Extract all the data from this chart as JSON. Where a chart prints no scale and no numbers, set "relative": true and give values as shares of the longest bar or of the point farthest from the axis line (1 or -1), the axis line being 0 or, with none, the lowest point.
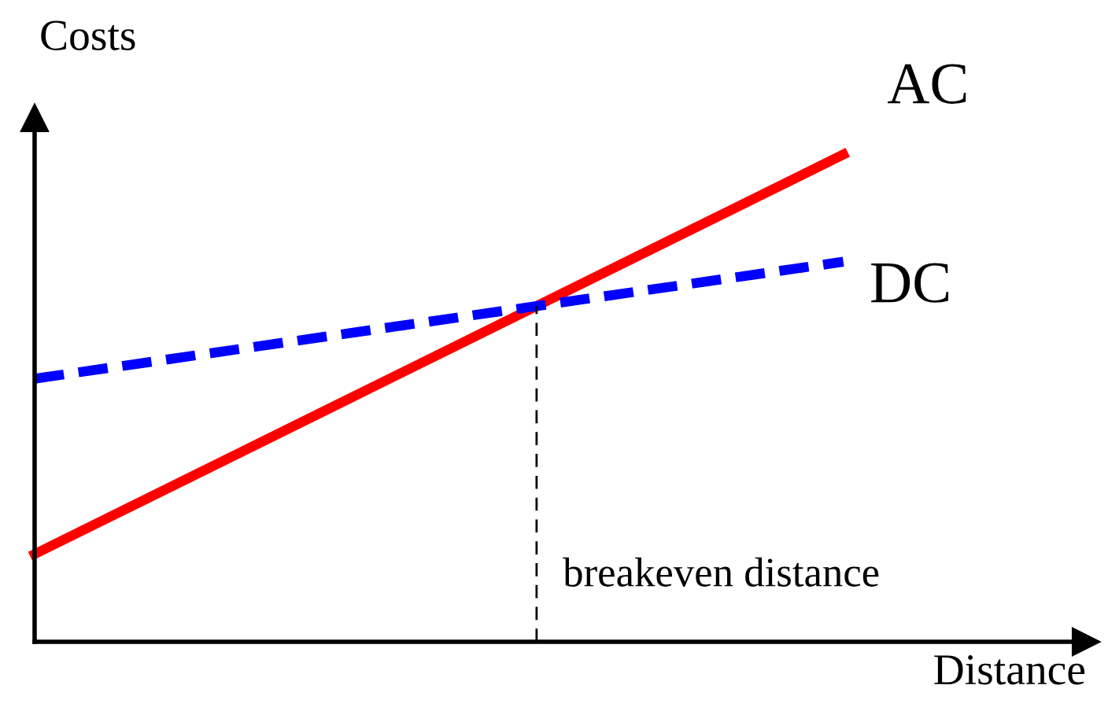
{
  "chart_data": {
    "type": "line",
    "relative": true,
    "xlabel": "Distance",
    "ylabel": "Costs",
    "categories": [
      null,
      null
    ],
    "series": [
      {
        "name": "AC",
        "color": "#ff0000",
        "values": [
          0.18,
          1.0
        ],
        "line_style": "solid"
      },
      {
        "name": "DC",
        "color": "#0000ff",
        "values": [
          0.54,
          0.78
        ],
        "line_style": "dashed"
      }
    ],
    "annotations": [
      "breakeven distance"
    ]
  }
}
